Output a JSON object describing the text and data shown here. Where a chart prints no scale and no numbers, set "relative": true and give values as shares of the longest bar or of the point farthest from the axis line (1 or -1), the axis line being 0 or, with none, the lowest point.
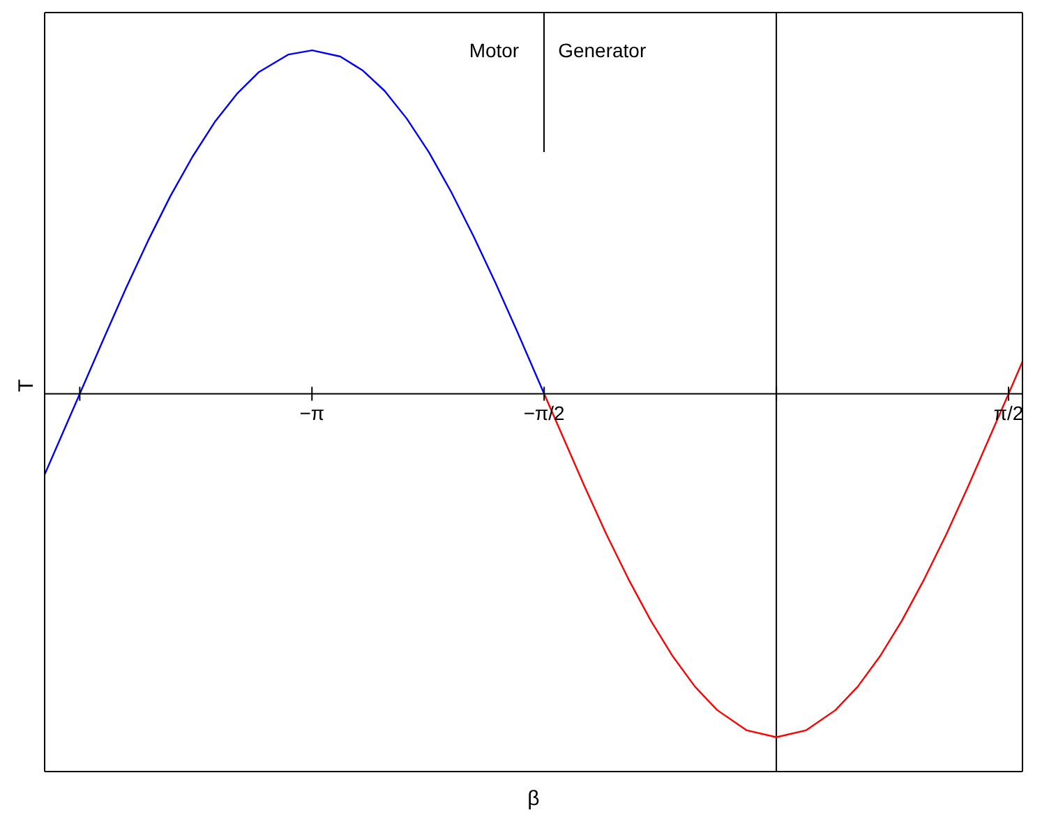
{
  "chart_data": {
    "type": "line",
    "relative": true,
    "xlabel": "β",
    "ylabel": "T",
    "annotations": [
      "Motor",
      "Generator"
    ],
    "xlim": [
      -4.95,
      1.665
    ],
    "xticks": [
      {
        "value": -4.7124,
        "label": null
      },
      {
        "value": -3.1416,
        "label": "−π"
      },
      {
        "value": -1.5708,
        "label": "−π/2"
      },
      {
        "value": 0,
        "label": null
      },
      {
        "value": 1.5708,
        "label": "π/2"
      }
    ],
    "ref_lines": [
      {
        "axis": "x",
        "value": 0
      }
    ],
    "marker": "none",
    "series": [
      {
        "color": "#0000ff",
        "x": [
          -4.95,
          -4.7,
          -4.55,
          -4.4,
          -4.25,
          -4.1,
          -3.95,
          -3.8,
          -3.65,
          -3.5,
          -3.3,
          -3.14,
          -2.95,
          -2.8,
          -2.65,
          -2.5,
          -2.35,
          -2.2,
          -2.05,
          -1.9,
          -1.75,
          -1.5708
        ],
        "values": [
          -0.235,
          0.012,
          0.161,
          0.307,
          0.446,
          0.575,
          0.69,
          0.791,
          0.873,
          0.937,
          0.988,
          1,
          0.982,
          0.942,
          0.882,
          0.801,
          0.703,
          0.588,
          0.46,
          0.323,
          0.178,
          0
        ]
      },
      {
        "color": "#ff0000",
        "x": [
          -1.5708,
          -1.3,
          -1.15,
          -1.0,
          -0.85,
          -0.7,
          -0.55,
          -0.4,
          -0.2,
          0,
          0.2,
          0.4,
          0.55,
          0.7,
          0.85,
          1.0,
          1.15,
          1.3,
          1.5708,
          1.665
        ],
        "values": [
          0,
          -0.267,
          -0.409,
          -0.54,
          -0.66,
          -0.765,
          -0.853,
          -0.921,
          -0.98,
          -1,
          -0.98,
          -0.921,
          -0.853,
          -0.765,
          -0.66,
          -0.54,
          -0.409,
          -0.267,
          0,
          0.094
        ]
      }
    ]
  }
}
